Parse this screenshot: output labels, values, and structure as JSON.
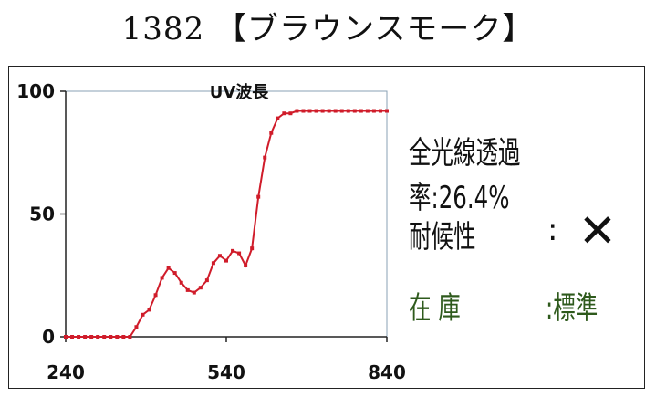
{
  "title": "1382 【ブラウンスモーク】",
  "chart_data": {
    "type": "line",
    "title": "UV波長",
    "xlabel": "",
    "ylabel": "",
    "xlim": [
      240,
      840
    ],
    "ylim": [
      0,
      100
    ],
    "x_ticks": [
      "240",
      "540",
      "840"
    ],
    "y_ticks": [
      "0",
      "50",
      "100"
    ],
    "grid": false,
    "series_color": "#d01c2a",
    "series": [
      {
        "x": [
          240,
          252,
          264,
          276,
          288,
          300,
          312,
          324,
          336,
          348,
          360,
          372,
          384,
          396,
          408,
          420,
          432,
          444,
          456,
          468,
          480,
          492,
          504,
          516,
          528,
          540,
          552,
          564,
          576,
          588,
          600,
          612,
          624,
          636,
          648,
          660,
          672,
          684,
          696,
          708,
          720,
          732,
          744,
          756,
          768,
          780,
          792,
          804,
          816,
          828,
          840
        ],
        "values": [
          0,
          0,
          0,
          0,
          0,
          0,
          0,
          0,
          0,
          0,
          0,
          4,
          9,
          11,
          17,
          24,
          28,
          26,
          22,
          19,
          18,
          20,
          23,
          30,
          33,
          31,
          35,
          34,
          29,
          36,
          57,
          73,
          83,
          89,
          91,
          91,
          92,
          92,
          92,
          92,
          92,
          92,
          92,
          92,
          92,
          92,
          92,
          92,
          92,
          92,
          92
        ]
      }
    ]
  },
  "info": {
    "transmittance_label": "全光線透過率",
    "transmittance_value": ":26.4%",
    "weather_label": "耐候性",
    "weather_sep": ":",
    "weather_value": "✕",
    "stock_label": "在 庫",
    "stock_value": ":標準"
  }
}
